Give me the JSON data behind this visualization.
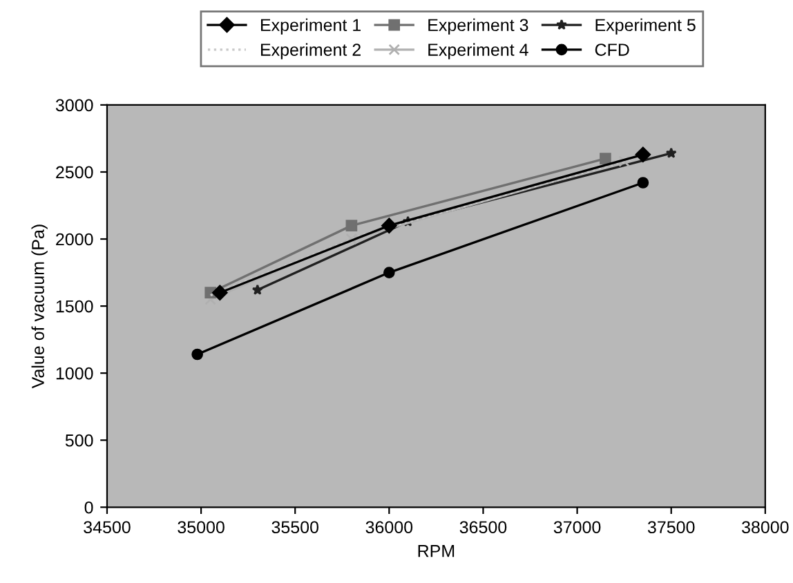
{
  "chart_data": {
    "type": "line",
    "xlabel": "RPM",
    "ylabel": "Value of vacuum (Pa)",
    "xlim": [
      34500,
      38000
    ],
    "xticks": [
      34500,
      35000,
      35500,
      36000,
      36500,
      37000,
      37500,
      38000
    ],
    "ylim": [
      0,
      3000
    ],
    "yticks": [
      0,
      500,
      1000,
      1500,
      2000,
      2500,
      3000
    ],
    "legend": "top",
    "grid": false,
    "series": [
      {
        "name": "Experiment 1",
        "color": "#000000",
        "marker": "diamond",
        "line_style": "solid",
        "x": [
          35100,
          36000,
          37350
        ],
        "values": [
          1600,
          2100,
          2630
        ]
      },
      {
        "name": "Experiment 2",
        "color": "#c8c8c8",
        "marker": "none",
        "line_style": "dotted",
        "x": [
          35050,
          35900,
          37300
        ],
        "values": [
          1580,
          2050,
          2600
        ]
      },
      {
        "name": "Experiment 3",
        "color": "#707070",
        "marker": "square",
        "line_style": "solid",
        "x": [
          35050,
          35800,
          37150
        ],
        "values": [
          1600,
          2100,
          2600
        ]
      },
      {
        "name": "Experiment 4",
        "color": "#b0b0b0",
        "marker": "cross",
        "line_style": "solid",
        "x": [
          35050,
          35800,
          37250
        ],
        "values": [
          1550,
          2000,
          2580
        ]
      },
      {
        "name": "Experiment 5",
        "color": "#202020",
        "marker": "star",
        "line_style": "solid",
        "x": [
          35300,
          36100,
          37500
        ],
        "values": [
          1620,
          2130,
          2640
        ]
      },
      {
        "name": "CFD",
        "color": "#000000",
        "marker": "circle",
        "line_style": "solid",
        "x": [
          34980,
          36000,
          37350
        ],
        "values": [
          1140,
          1750,
          2420
        ]
      }
    ]
  }
}
